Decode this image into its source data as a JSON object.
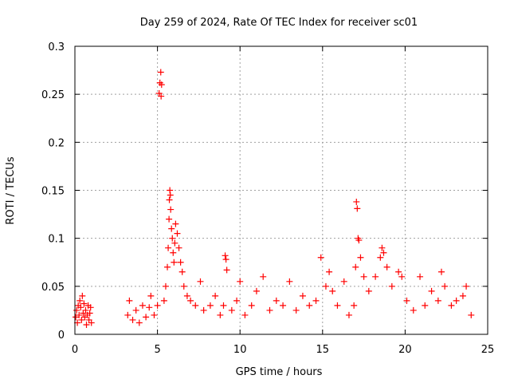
{
  "chart_data": {
    "type": "scatter",
    "title": "Day 259 of 2024, Rate Of TEC Index for receiver sc01",
    "xlabel": "GPS time / hours",
    "ylabel": "ROTI / TECUs",
    "xlim": [
      0,
      25
    ],
    "ylim": [
      0,
      0.3
    ],
    "xticks": [
      "0",
      "5",
      "10",
      "15",
      "20",
      "25"
    ],
    "xtick_values": [
      0,
      5,
      10,
      15,
      20,
      25
    ],
    "yticks": [
      "0",
      "0.05",
      "0.1",
      "0.15",
      "0.2",
      "0.25",
      "0.3"
    ],
    "ytick_values": [
      0,
      0.05,
      0.1,
      0.15,
      0.2,
      0.25,
      0.3
    ],
    "grid": true,
    "marker": "+",
    "color": "#ff0000",
    "series": [
      {
        "points": [
          [
            0.05,
            0.018
          ],
          [
            0.1,
            0.025
          ],
          [
            0.15,
            0.012
          ],
          [
            0.2,
            0.03
          ],
          [
            0.25,
            0.02
          ],
          [
            0.3,
            0.035
          ],
          [
            0.35,
            0.028
          ],
          [
            0.4,
            0.015
          ],
          [
            0.45,
            0.04
          ],
          [
            0.5,
            0.022
          ],
          [
            0.55,
            0.032
          ],
          [
            0.6,
            0.018
          ],
          [
            0.65,
            0.025
          ],
          [
            0.7,
            0.01
          ],
          [
            0.75,
            0.02
          ],
          [
            0.8,
            0.03
          ],
          [
            0.85,
            0.015
          ],
          [
            0.9,
            0.022
          ],
          [
            0.95,
            0.028
          ],
          [
            1.0,
            0.012
          ],
          [
            3.2,
            0.02
          ],
          [
            3.3,
            0.035
          ],
          [
            3.5,
            0.015
          ],
          [
            3.7,
            0.025
          ],
          [
            3.9,
            0.012
          ],
          [
            4.1,
            0.03
          ],
          [
            4.3,
            0.018
          ],
          [
            4.5,
            0.028
          ],
          [
            4.6,
            0.04
          ],
          [
            4.8,
            0.02
          ],
          [
            5.0,
            0.03
          ],
          [
            5.1,
            0.251
          ],
          [
            5.15,
            0.262
          ],
          [
            5.2,
            0.273
          ],
          [
            5.22,
            0.248
          ],
          [
            5.25,
            0.26
          ],
          [
            5.4,
            0.035
          ],
          [
            5.5,
            0.05
          ],
          [
            5.6,
            0.07
          ],
          [
            5.65,
            0.09
          ],
          [
            5.7,
            0.12
          ],
          [
            5.72,
            0.14
          ],
          [
            5.75,
            0.15
          ],
          [
            5.78,
            0.145
          ],
          [
            5.8,
            0.13
          ],
          [
            5.85,
            0.11
          ],
          [
            5.9,
            0.1
          ],
          [
            5.95,
            0.085
          ],
          [
            6.0,
            0.075
          ],
          [
            6.05,
            0.095
          ],
          [
            6.1,
            0.115
          ],
          [
            6.2,
            0.105
          ],
          [
            6.3,
            0.09
          ],
          [
            6.4,
            0.075
          ],
          [
            6.5,
            0.065
          ],
          [
            6.6,
            0.05
          ],
          [
            6.8,
            0.04
          ],
          [
            7.0,
            0.035
          ],
          [
            7.3,
            0.03
          ],
          [
            7.6,
            0.055
          ],
          [
            7.8,
            0.025
          ],
          [
            8.2,
            0.03
          ],
          [
            8.5,
            0.04
          ],
          [
            8.8,
            0.02
          ],
          [
            9.0,
            0.03
          ],
          [
            9.1,
            0.082
          ],
          [
            9.15,
            0.078
          ],
          [
            9.2,
            0.067
          ],
          [
            9.5,
            0.025
          ],
          [
            9.8,
            0.035
          ],
          [
            10.0,
            0.055
          ],
          [
            10.3,
            0.02
          ],
          [
            10.7,
            0.03
          ],
          [
            11.0,
            0.045
          ],
          [
            11.4,
            0.06
          ],
          [
            11.8,
            0.025
          ],
          [
            12.2,
            0.035
          ],
          [
            12.6,
            0.03
          ],
          [
            13.0,
            0.055
          ],
          [
            13.4,
            0.025
          ],
          [
            13.8,
            0.04
          ],
          [
            14.2,
            0.03
          ],
          [
            14.6,
            0.035
          ],
          [
            14.9,
            0.08
          ],
          [
            15.2,
            0.05
          ],
          [
            15.4,
            0.065
          ],
          [
            15.6,
            0.045
          ],
          [
            15.9,
            0.03
          ],
          [
            16.3,
            0.055
          ],
          [
            16.6,
            0.02
          ],
          [
            16.9,
            0.03
          ],
          [
            17.0,
            0.07
          ],
          [
            17.05,
            0.138
          ],
          [
            17.1,
            0.131
          ],
          [
            17.15,
            0.1
          ],
          [
            17.2,
            0.098
          ],
          [
            17.3,
            0.08
          ],
          [
            17.5,
            0.06
          ],
          [
            17.8,
            0.045
          ],
          [
            18.2,
            0.06
          ],
          [
            18.5,
            0.08
          ],
          [
            18.6,
            0.09
          ],
          [
            18.7,
            0.085
          ],
          [
            18.9,
            0.07
          ],
          [
            19.2,
            0.05
          ],
          [
            19.6,
            0.065
          ],
          [
            19.8,
            0.06
          ],
          [
            20.1,
            0.035
          ],
          [
            20.5,
            0.025
          ],
          [
            20.9,
            0.06
          ],
          [
            21.2,
            0.03
          ],
          [
            21.6,
            0.045
          ],
          [
            22.0,
            0.035
          ],
          [
            22.2,
            0.065
          ],
          [
            22.4,
            0.05
          ],
          [
            22.8,
            0.03
          ],
          [
            23.1,
            0.035
          ],
          [
            23.5,
            0.04
          ],
          [
            23.7,
            0.05
          ],
          [
            24.0,
            0.02
          ]
        ]
      }
    ]
  }
}
